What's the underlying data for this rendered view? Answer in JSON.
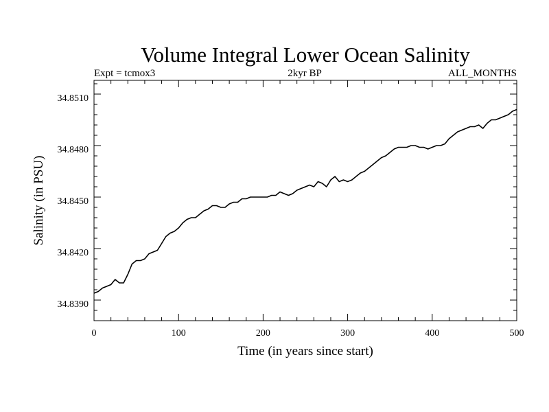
{
  "chart_data": {
    "type": "line",
    "title": "Volume Integral Lower Ocean Salinity",
    "subtitle_left": "Expt = tcmox3",
    "subtitle_center": "2kyr BP",
    "subtitle_right": "ALL_MONTHS",
    "xlabel": "Time (in years since start)",
    "ylabel": "Salinity (in PSU)",
    "xlim": [
      0,
      500
    ],
    "ylim": [
      34.838,
      34.852
    ],
    "xticks": [
      0,
      100,
      200,
      300,
      400,
      500
    ],
    "xtick_labels": [
      "0",
      "100",
      "200",
      "300",
      "400",
      "500"
    ],
    "yticks": [
      34.839,
      34.842,
      34.845,
      34.848,
      34.851
    ],
    "ytick_labels": [
      "34.8390",
      "34.8420",
      "34.8450",
      "34.8480",
      "34.8510"
    ],
    "grid": false,
    "series": [
      {
        "name": "salinity",
        "color": "#000000",
        "x": [
          0,
          5,
          10,
          15,
          20,
          25,
          30,
          35,
          40,
          45,
          50,
          55,
          60,
          65,
          70,
          75,
          80,
          85,
          90,
          95,
          100,
          105,
          110,
          115,
          120,
          125,
          130,
          135,
          140,
          145,
          150,
          155,
          160,
          165,
          170,
          175,
          180,
          185,
          190,
          195,
          200,
          205,
          210,
          215,
          220,
          225,
          230,
          235,
          240,
          245,
          250,
          255,
          260,
          265,
          270,
          275,
          280,
          285,
          290,
          295,
          300,
          305,
          310,
          315,
          320,
          325,
          330,
          335,
          340,
          345,
          350,
          355,
          360,
          365,
          370,
          375,
          380,
          385,
          390,
          395,
          400,
          405,
          410,
          415,
          420,
          425,
          430,
          435,
          440,
          445,
          450,
          455,
          460,
          465,
          470,
          475,
          480,
          485,
          490,
          495,
          500
        ],
        "y": [
          34.8396,
          34.8397,
          34.8399,
          34.84,
          34.8401,
          34.8404,
          34.8402,
          34.8402,
          34.8407,
          34.8413,
          34.8415,
          34.8415,
          34.8416,
          34.8419,
          34.842,
          34.8421,
          34.8425,
          34.8429,
          34.8431,
          34.8432,
          34.8434,
          34.8437,
          34.8439,
          34.844,
          34.844,
          34.8442,
          34.8444,
          34.8445,
          34.8447,
          34.8447,
          34.8446,
          34.8446,
          34.8448,
          34.8449,
          34.8449,
          34.8451,
          34.8451,
          34.8452,
          34.8452,
          34.8452,
          34.8452,
          34.8452,
          34.8453,
          34.8453,
          34.8455,
          34.8454,
          34.8453,
          34.8454,
          34.8456,
          34.8457,
          34.8458,
          34.8459,
          34.8458,
          34.8461,
          34.846,
          34.8458,
          34.8462,
          34.8464,
          34.8461,
          34.8462,
          34.8461,
          34.8462,
          34.8464,
          34.8466,
          34.8467,
          34.8469,
          34.8471,
          34.8473,
          34.8475,
          34.8476,
          34.8478,
          34.848,
          34.8481,
          34.8481,
          34.8481,
          34.8482,
          34.8482,
          34.8481,
          34.8481,
          34.848,
          34.8481,
          34.8482,
          34.8482,
          34.8483,
          34.8486,
          34.8488,
          34.849,
          34.8491,
          34.8492,
          34.8493,
          34.8493,
          34.8494,
          34.8492,
          34.8495,
          34.8497,
          34.8497,
          34.8498,
          34.8499,
          34.85,
          34.8502,
          34.8503
        ]
      }
    ]
  }
}
